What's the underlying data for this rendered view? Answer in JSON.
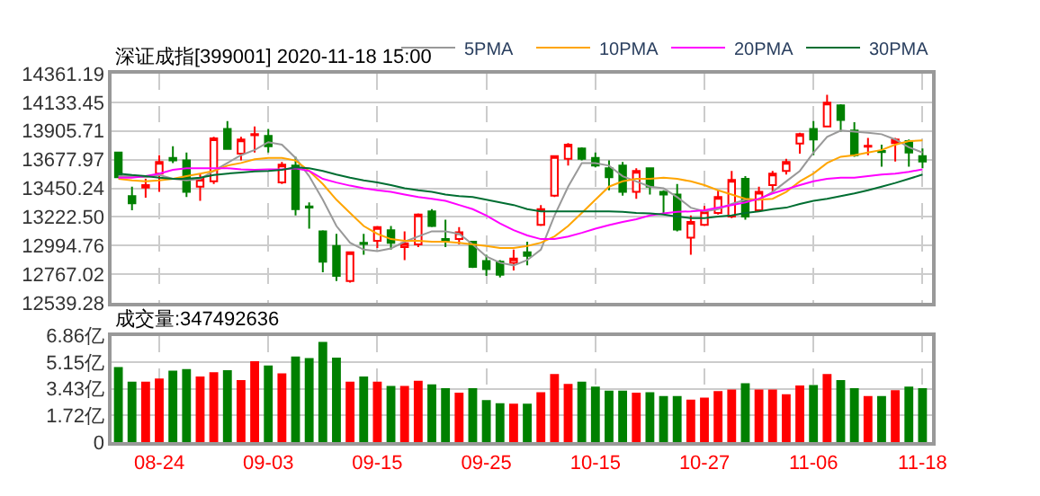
{
  "chart_data": [
    {
      "type": "candlestick",
      "title": "深证成指[399001] 2020-11-18 15:00",
      "categories": [
        null,
        null,
        null,
        null,
        null,
        null,
        null,
        null,
        null,
        null,
        null,
        null,
        null,
        null,
        null,
        null,
        null,
        null,
        null,
        null,
        null,
        null,
        null,
        null,
        null,
        null,
        null,
        null,
        null,
        null,
        null,
        null,
        null,
        null,
        null,
        null,
        null,
        null,
        null,
        null,
        null,
        null,
        null,
        null,
        null,
        null,
        null,
        null,
        null,
        null,
        null,
        null,
        null,
        null,
        null,
        null,
        null,
        null,
        null,
        null
      ],
      "ohlc": [
        [
          13734,
          13734,
          13530,
          13538
        ],
        [
          13388,
          13463,
          13275,
          13330
        ],
        [
          13455,
          13525,
          13375,
          13475
        ],
        [
          13567,
          13713,
          13421,
          13659
        ],
        [
          13692,
          13784,
          13651,
          13671
        ],
        [
          13671,
          13734,
          13380,
          13421
        ],
        [
          13463,
          13567,
          13350,
          13525
        ],
        [
          13505,
          13859,
          13484,
          13847
        ],
        [
          13922,
          13984,
          13755,
          13763
        ],
        [
          13726,
          13859,
          13671,
          13838
        ],
        [
          13872,
          13942,
          13734,
          13880
        ],
        [
          13867,
          13922,
          13734,
          13784
        ],
        [
          13496,
          13659,
          13484,
          13638
        ],
        [
          13630,
          13701,
          13234,
          13284
        ],
        [
          13305,
          13338,
          13129,
          13296
        ],
        [
          13108,
          13117,
          12783,
          12867
        ],
        [
          12992,
          13088,
          12712,
          12754
        ],
        [
          12712,
          12942,
          12700,
          12942
        ],
        [
          13017,
          13088,
          12921,
          13008
        ],
        [
          13033,
          13150,
          12975,
          13142
        ],
        [
          13117,
          13150,
          12962,
          13017
        ],
        [
          12983,
          13108,
          12879,
          13013
        ],
        [
          13004,
          13250,
          12983,
          13242
        ],
        [
          13267,
          13284,
          13142,
          13150
        ],
        [
          13046,
          13200,
          12983,
          13025
        ],
        [
          13046,
          13142,
          13004,
          13100
        ],
        [
          13025,
          13033,
          12817,
          12825
        ],
        [
          12871,
          12921,
          12754,
          12808
        ],
        [
          12867,
          12879,
          12742,
          12762
        ],
        [
          12858,
          12962,
          12796,
          12892
        ],
        [
          12942,
          13025,
          12838,
          12913
        ],
        [
          13159,
          13317,
          13150,
          13284
        ],
        [
          13392,
          13713,
          13380,
          13705
        ],
        [
          13684,
          13809,
          13630,
          13797
        ],
        [
          13767,
          13776,
          13671,
          13684
        ],
        [
          13692,
          13734,
          13617,
          13630
        ],
        [
          13609,
          13671,
          13434,
          13538
        ],
        [
          13630,
          13659,
          13392,
          13421
        ],
        [
          13421,
          13609,
          13367,
          13588
        ],
        [
          13609,
          13617,
          13400,
          13463
        ],
        [
          13421,
          13434,
          13242,
          13400
        ],
        [
          13400,
          13484,
          13108,
          13121
        ],
        [
          13058,
          13234,
          12921,
          13183
        ],
        [
          13159,
          13309,
          13150,
          13267
        ],
        [
          13254,
          13434,
          13242,
          13380
        ],
        [
          13225,
          13588,
          13213,
          13517
        ],
        [
          13525,
          13546,
          13200,
          13225
        ],
        [
          13275,
          13463,
          13267,
          13421
        ],
        [
          13475,
          13588,
          13421,
          13567
        ],
        [
          13588,
          13684,
          13559,
          13659
        ],
        [
          13805,
          13892,
          13726,
          13880
        ],
        [
          13922,
          13984,
          13713,
          13838
        ],
        [
          13942,
          14193,
          13934,
          14130
        ],
        [
          14109,
          14118,
          13901,
          13993
        ],
        [
          13909,
          13976,
          13701,
          13713
        ],
        [
          13780,
          13851,
          13713,
          13788
        ],
        [
          13747,
          13797,
          13621,
          13738
        ],
        [
          13809,
          13851,
          13663,
          13838
        ],
        [
          13826,
          13838,
          13621,
          13734
        ],
        [
          13705,
          13767,
          13609,
          13663
        ]
      ],
      "series": [
        {
          "type": "line",
          "name": "5PMA",
          "color": "#999999",
          "values": [
            13546,
            13546,
            13538,
            13555,
            13525,
            13513,
            13525,
            13588,
            13651,
            13713,
            13755,
            13817,
            13797,
            13692,
            13546,
            13359,
            13150,
            13017,
            12962,
            12950,
            12971,
            13025,
            13067,
            13108,
            13108,
            13088,
            13004,
            12908,
            12858,
            12837,
            12879,
            12962,
            13234,
            13463,
            13651,
            13651,
            13630,
            13546,
            13505,
            13463,
            13450,
            13380,
            13296,
            13267,
            13284,
            13325,
            13359,
            13359,
            13421,
            13505,
            13588,
            13734,
            13859,
            13909,
            13901,
            13892,
            13880,
            13838,
            13776,
            13734
          ]
        },
        {
          "type": "line",
          "name": "10PMA",
          "color": "#ffa500",
          "values": [
            13525,
            13513,
            13505,
            13513,
            13525,
            13546,
            13567,
            13588,
            13630,
            13651,
            13680,
            13692,
            13692,
            13671,
            13588,
            13484,
            13359,
            13254,
            13150,
            13088,
            13046,
            13033,
            13033,
            13025,
            13025,
            13017,
            13004,
            12992,
            12975,
            12975,
            12992,
            13017,
            13067,
            13150,
            13254,
            13359,
            13463,
            13505,
            13525,
            13525,
            13534,
            13525,
            13505,
            13475,
            13434,
            13400,
            13367,
            13359,
            13367,
            13421,
            13505,
            13567,
            13651,
            13701,
            13713,
            13734,
            13755,
            13797,
            13826,
            13830
          ]
        },
        {
          "type": "line",
          "name": "20PMA",
          "color": "#ff00ff",
          "values": [
            13534,
            13534,
            13546,
            13567,
            13596,
            13609,
            13609,
            13609,
            13609,
            13601,
            13596,
            13601,
            13601,
            13609,
            13588,
            13525,
            13496,
            13471,
            13450,
            13434,
            13421,
            13400,
            13380,
            13367,
            13350,
            13317,
            13284,
            13234,
            13171,
            13117,
            13075,
            13046,
            13046,
            13067,
            13096,
            13129,
            13158,
            13183,
            13204,
            13234,
            13250,
            13263,
            13267,
            13275,
            13296,
            13317,
            13338,
            13367,
            13409,
            13442,
            13475,
            13505,
            13525,
            13534,
            13534,
            13546,
            13559,
            13567,
            13580,
            13601
          ]
        },
        {
          "type": "line",
          "name": "30PMA",
          "color": "#006e32",
          "values": [
            13567,
            13555,
            13546,
            13534,
            13525,
            13525,
            13534,
            13555,
            13567,
            13576,
            13584,
            13588,
            13596,
            13617,
            13609,
            13588,
            13559,
            13534,
            13513,
            13496,
            13475,
            13450,
            13434,
            13421,
            13400,
            13388,
            13380,
            13359,
            13338,
            13317,
            13284,
            13267,
            13267,
            13267,
            13267,
            13267,
            13267,
            13263,
            13254,
            13250,
            13242,
            13225,
            13213,
            13213,
            13225,
            13234,
            13254,
            13267,
            13284,
            13296,
            13325,
            13350,
            13367,
            13388,
            13409,
            13434,
            13463,
            13492,
            13525,
            13559
          ]
        }
      ],
      "ylim": [
        12539.28,
        14361.19
      ],
      "yticks": [
        12539.28,
        12767.02,
        12994.76,
        {
          "value": 13222.5,
          "label": "13222.50"
        },
        13450.24,
        13677.97,
        13905.71,
        14133.45,
        14361.19
      ],
      "grid": true,
      "legend": "top right",
      "tick_labels": "y"
    },
    {
      "type": "bar",
      "title": "成交量:347492636",
      "categories": [
        null,
        null,
        null,
        "08-24",
        null,
        null,
        null,
        null,
        null,
        null,
        null,
        "09-03",
        null,
        null,
        null,
        null,
        null,
        null,
        null,
        "09-15",
        null,
        null,
        null,
        null,
        null,
        null,
        null,
        "09-25",
        null,
        null,
        null,
        null,
        null,
        null,
        null,
        "10-15",
        null,
        null,
        null,
        null,
        null,
        null,
        null,
        "10-27",
        null,
        null,
        null,
        null,
        null,
        null,
        null,
        "11-06",
        null,
        null,
        null,
        null,
        null,
        null,
        null,
        "11-18"
      ],
      "values": [
        4.83,
        3.89,
        3.89,
        4.09,
        4.6,
        4.7,
        4.23,
        4.5,
        4.63,
        3.99,
        5.21,
        4.93,
        4.43,
        5.51,
        5.41,
        6.46,
        5.44,
        3.89,
        4.23,
        3.89,
        3.62,
        3.62,
        3.95,
        3.72,
        3.48,
        3.18,
        3.48,
        2.7,
        2.5,
        2.47,
        2.47,
        3.21,
        4.39,
        3.75,
        3.89,
        3.58,
        3.31,
        3.31,
        3.18,
        3.21,
        2.97,
        2.97,
        2.74,
        2.87,
        3.28,
        3.38,
        3.79,
        3.38,
        3.38,
        3.08,
        3.65,
        3.68,
        4.39,
        3.99,
        3.48,
        2.97,
        2.97,
        3.35,
        3.58,
        3.48
      ],
      "colors": [
        "#008000",
        "#008000",
        "#ff0000",
        "#ff0000",
        "#008000",
        "#008000",
        "#ff0000",
        "#ff0000",
        "#008000",
        "#ff0000",
        "#ff0000",
        "#008000",
        "#ff0000",
        "#008000",
        "#008000",
        "#008000",
        "#008000",
        "#ff0000",
        "#008000",
        "#ff0000",
        "#008000",
        "#ff0000",
        "#ff0000",
        "#008000",
        "#008000",
        "#ff0000",
        "#008000",
        "#008000",
        "#008000",
        "#ff0000",
        "#008000",
        "#ff0000",
        "#ff0000",
        "#ff0000",
        "#008000",
        "#008000",
        "#008000",
        "#008000",
        "#ff0000",
        "#008000",
        "#008000",
        "#008000",
        "#ff0000",
        "#ff0000",
        "#ff0000",
        "#ff0000",
        "#008000",
        "#ff0000",
        "#ff0000",
        "#ff0000",
        "#ff0000",
        "#008000",
        "#ff0000",
        "#008000",
        "#008000",
        "#ff0000",
        "#008000",
        "#ff0000",
        "#008000",
        "#008000"
      ],
      "ylim": [
        0,
        6.86
      ],
      "yticks": [
        0,
        {
          "value": 1.72,
          "label": "1.72亿"
        },
        {
          "value": 3.43,
          "label": "3.43亿"
        },
        {
          "value": 5.15,
          "label": "5.15亿"
        },
        {
          "value": 6.86,
          "label": "6.86亿"
        }
      ],
      "grid": true
    }
  ]
}
